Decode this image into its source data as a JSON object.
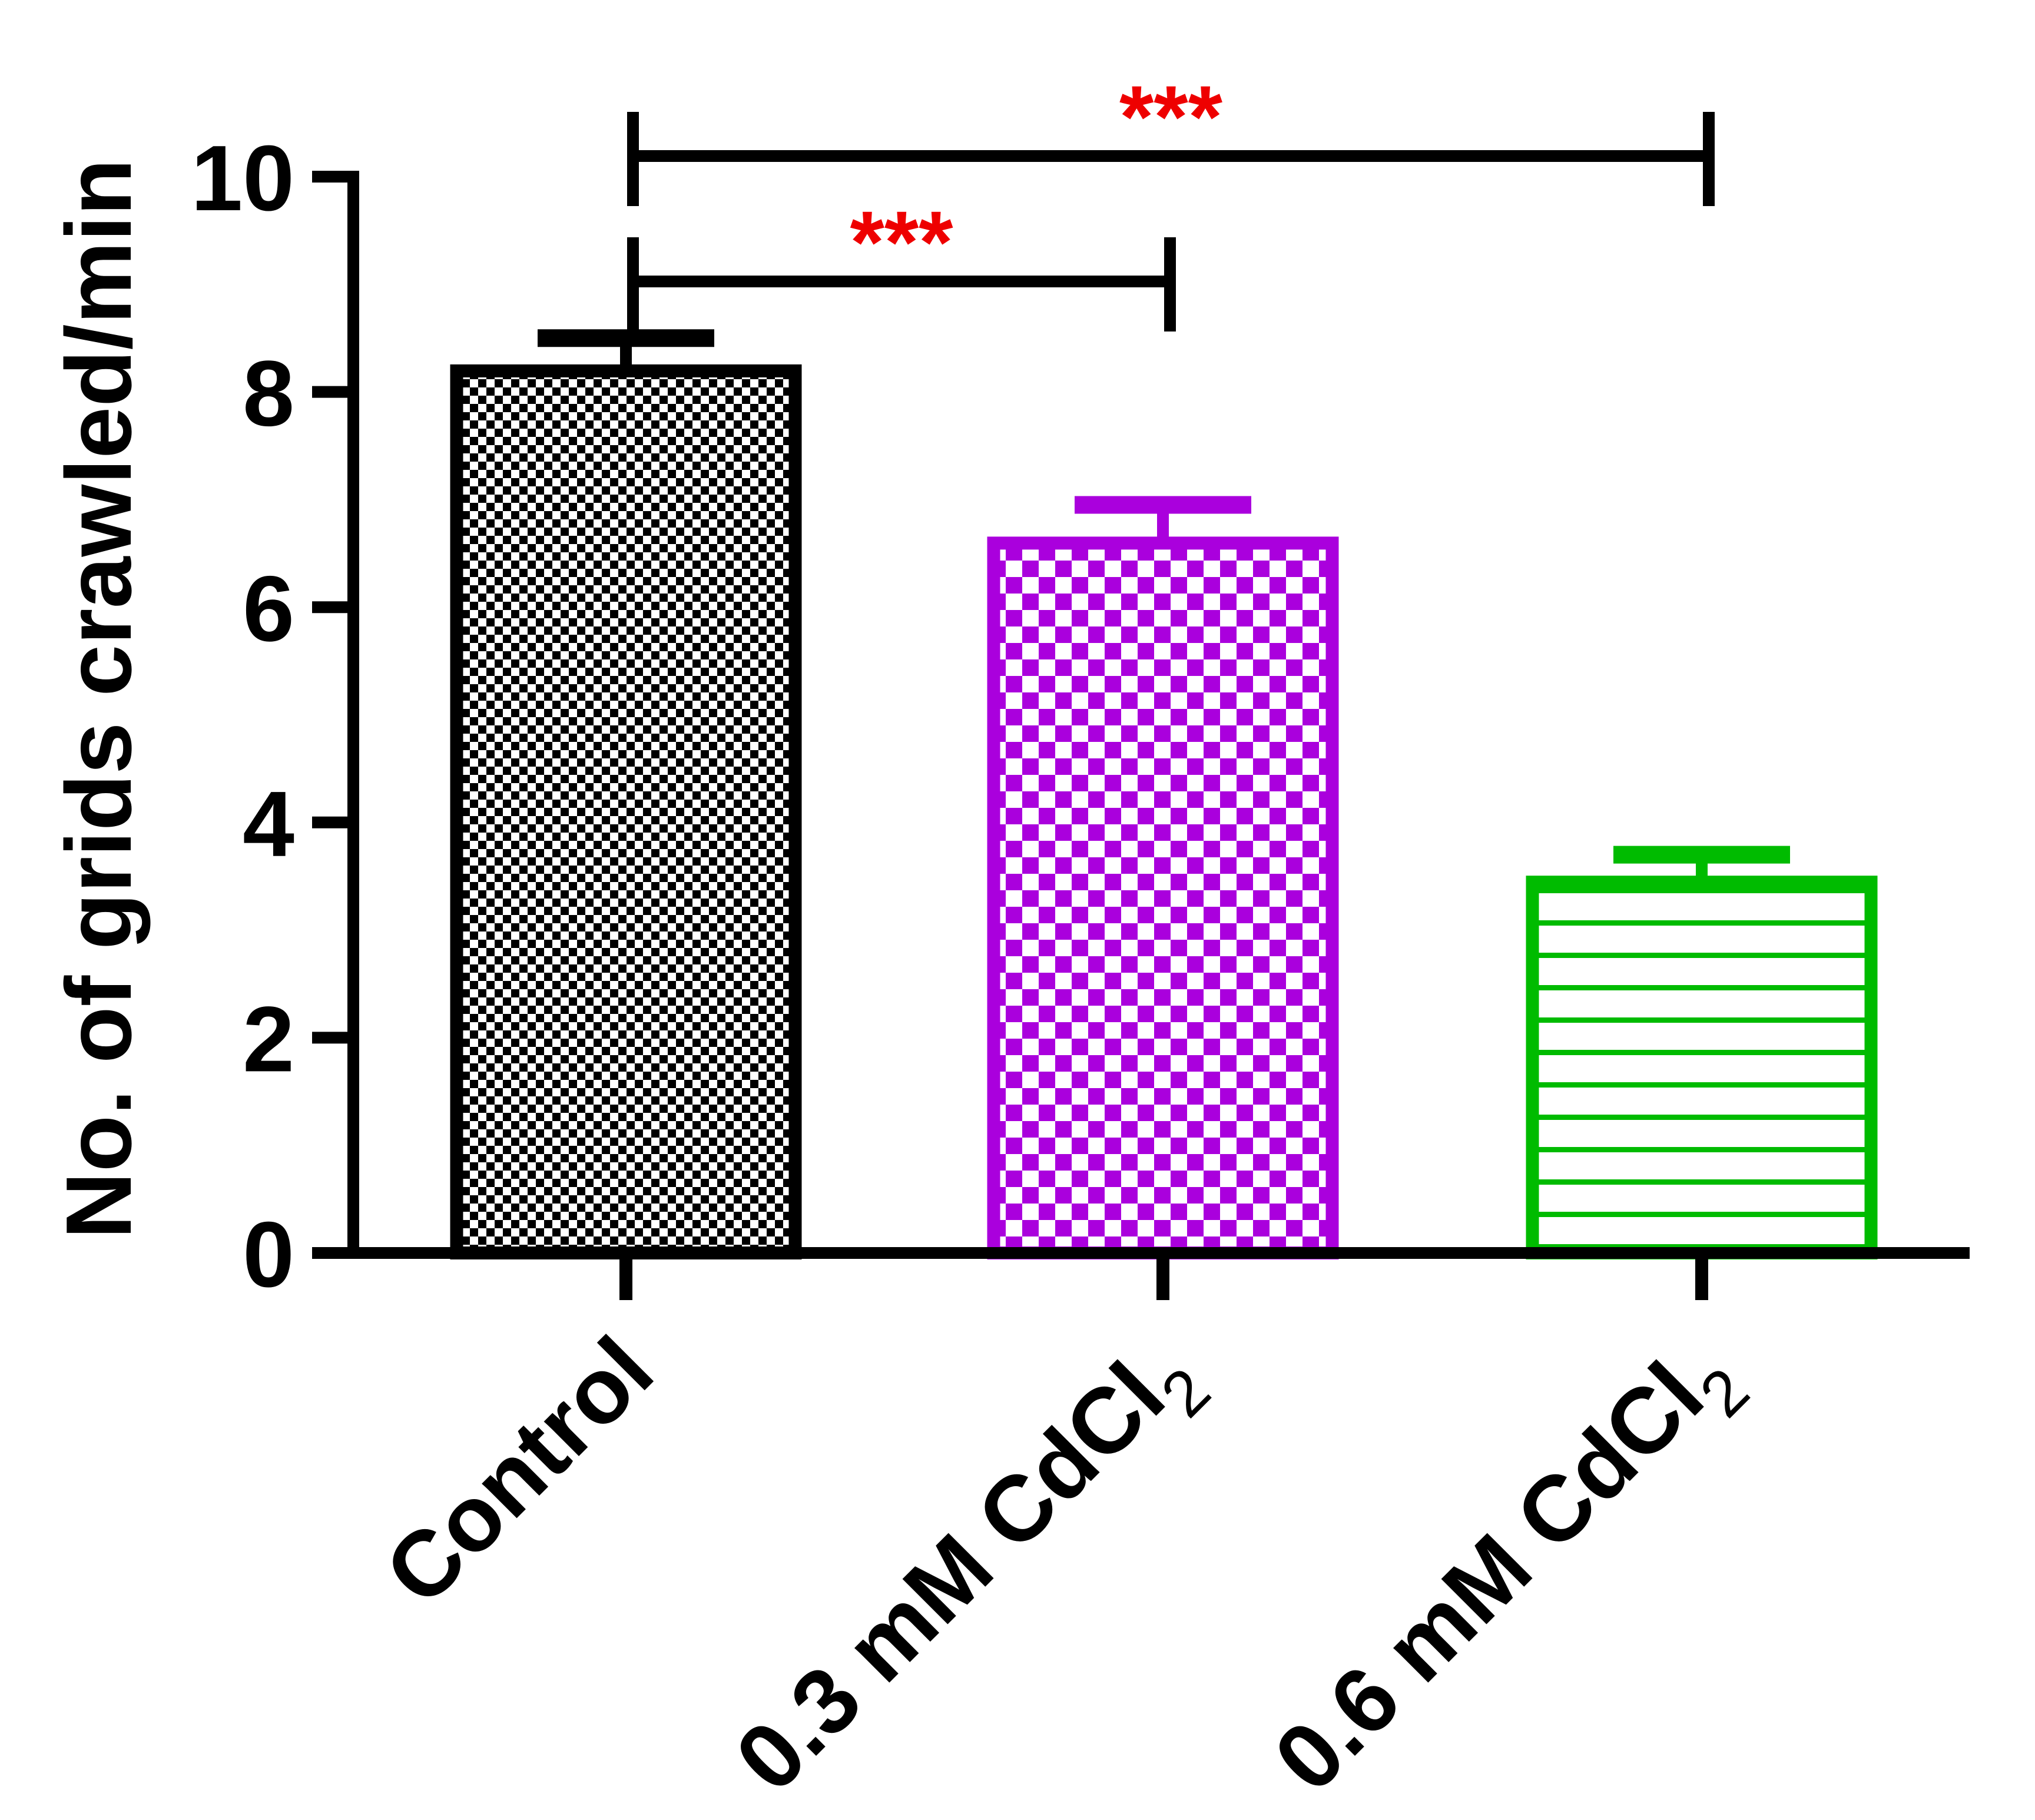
{
  "chart_data": {
    "type": "bar",
    "title": "",
    "ylabel": "No. of grids crawled/min",
    "xlabel": "",
    "ylim": [
      0,
      10
    ],
    "yticks": [
      "0",
      "2",
      "4",
      "6",
      "8",
      "10"
    ],
    "categories": [
      {
        "main": "Control",
        "sub": ""
      },
      {
        "main": "0.3 mM CdCl",
        "sub": "2"
      },
      {
        "main": "0.6 mM CdCl",
        "sub": "2"
      }
    ],
    "values": [
      8.25,
      6.65,
      3.5
    ],
    "errors": [
      0.25,
      0.3,
      0.2
    ],
    "colors": [
      "#000000",
      "#aa00dd",
      "#00bb00"
    ],
    "patterns": [
      "fine-checker",
      "coarse-checker",
      "horizontal-lines"
    ],
    "significance": [
      {
        "from": 0,
        "to": 2,
        "label": "***"
      },
      {
        "from": 0,
        "to": 1,
        "label": "***"
      }
    ],
    "significance_color": "#ee0000"
  }
}
